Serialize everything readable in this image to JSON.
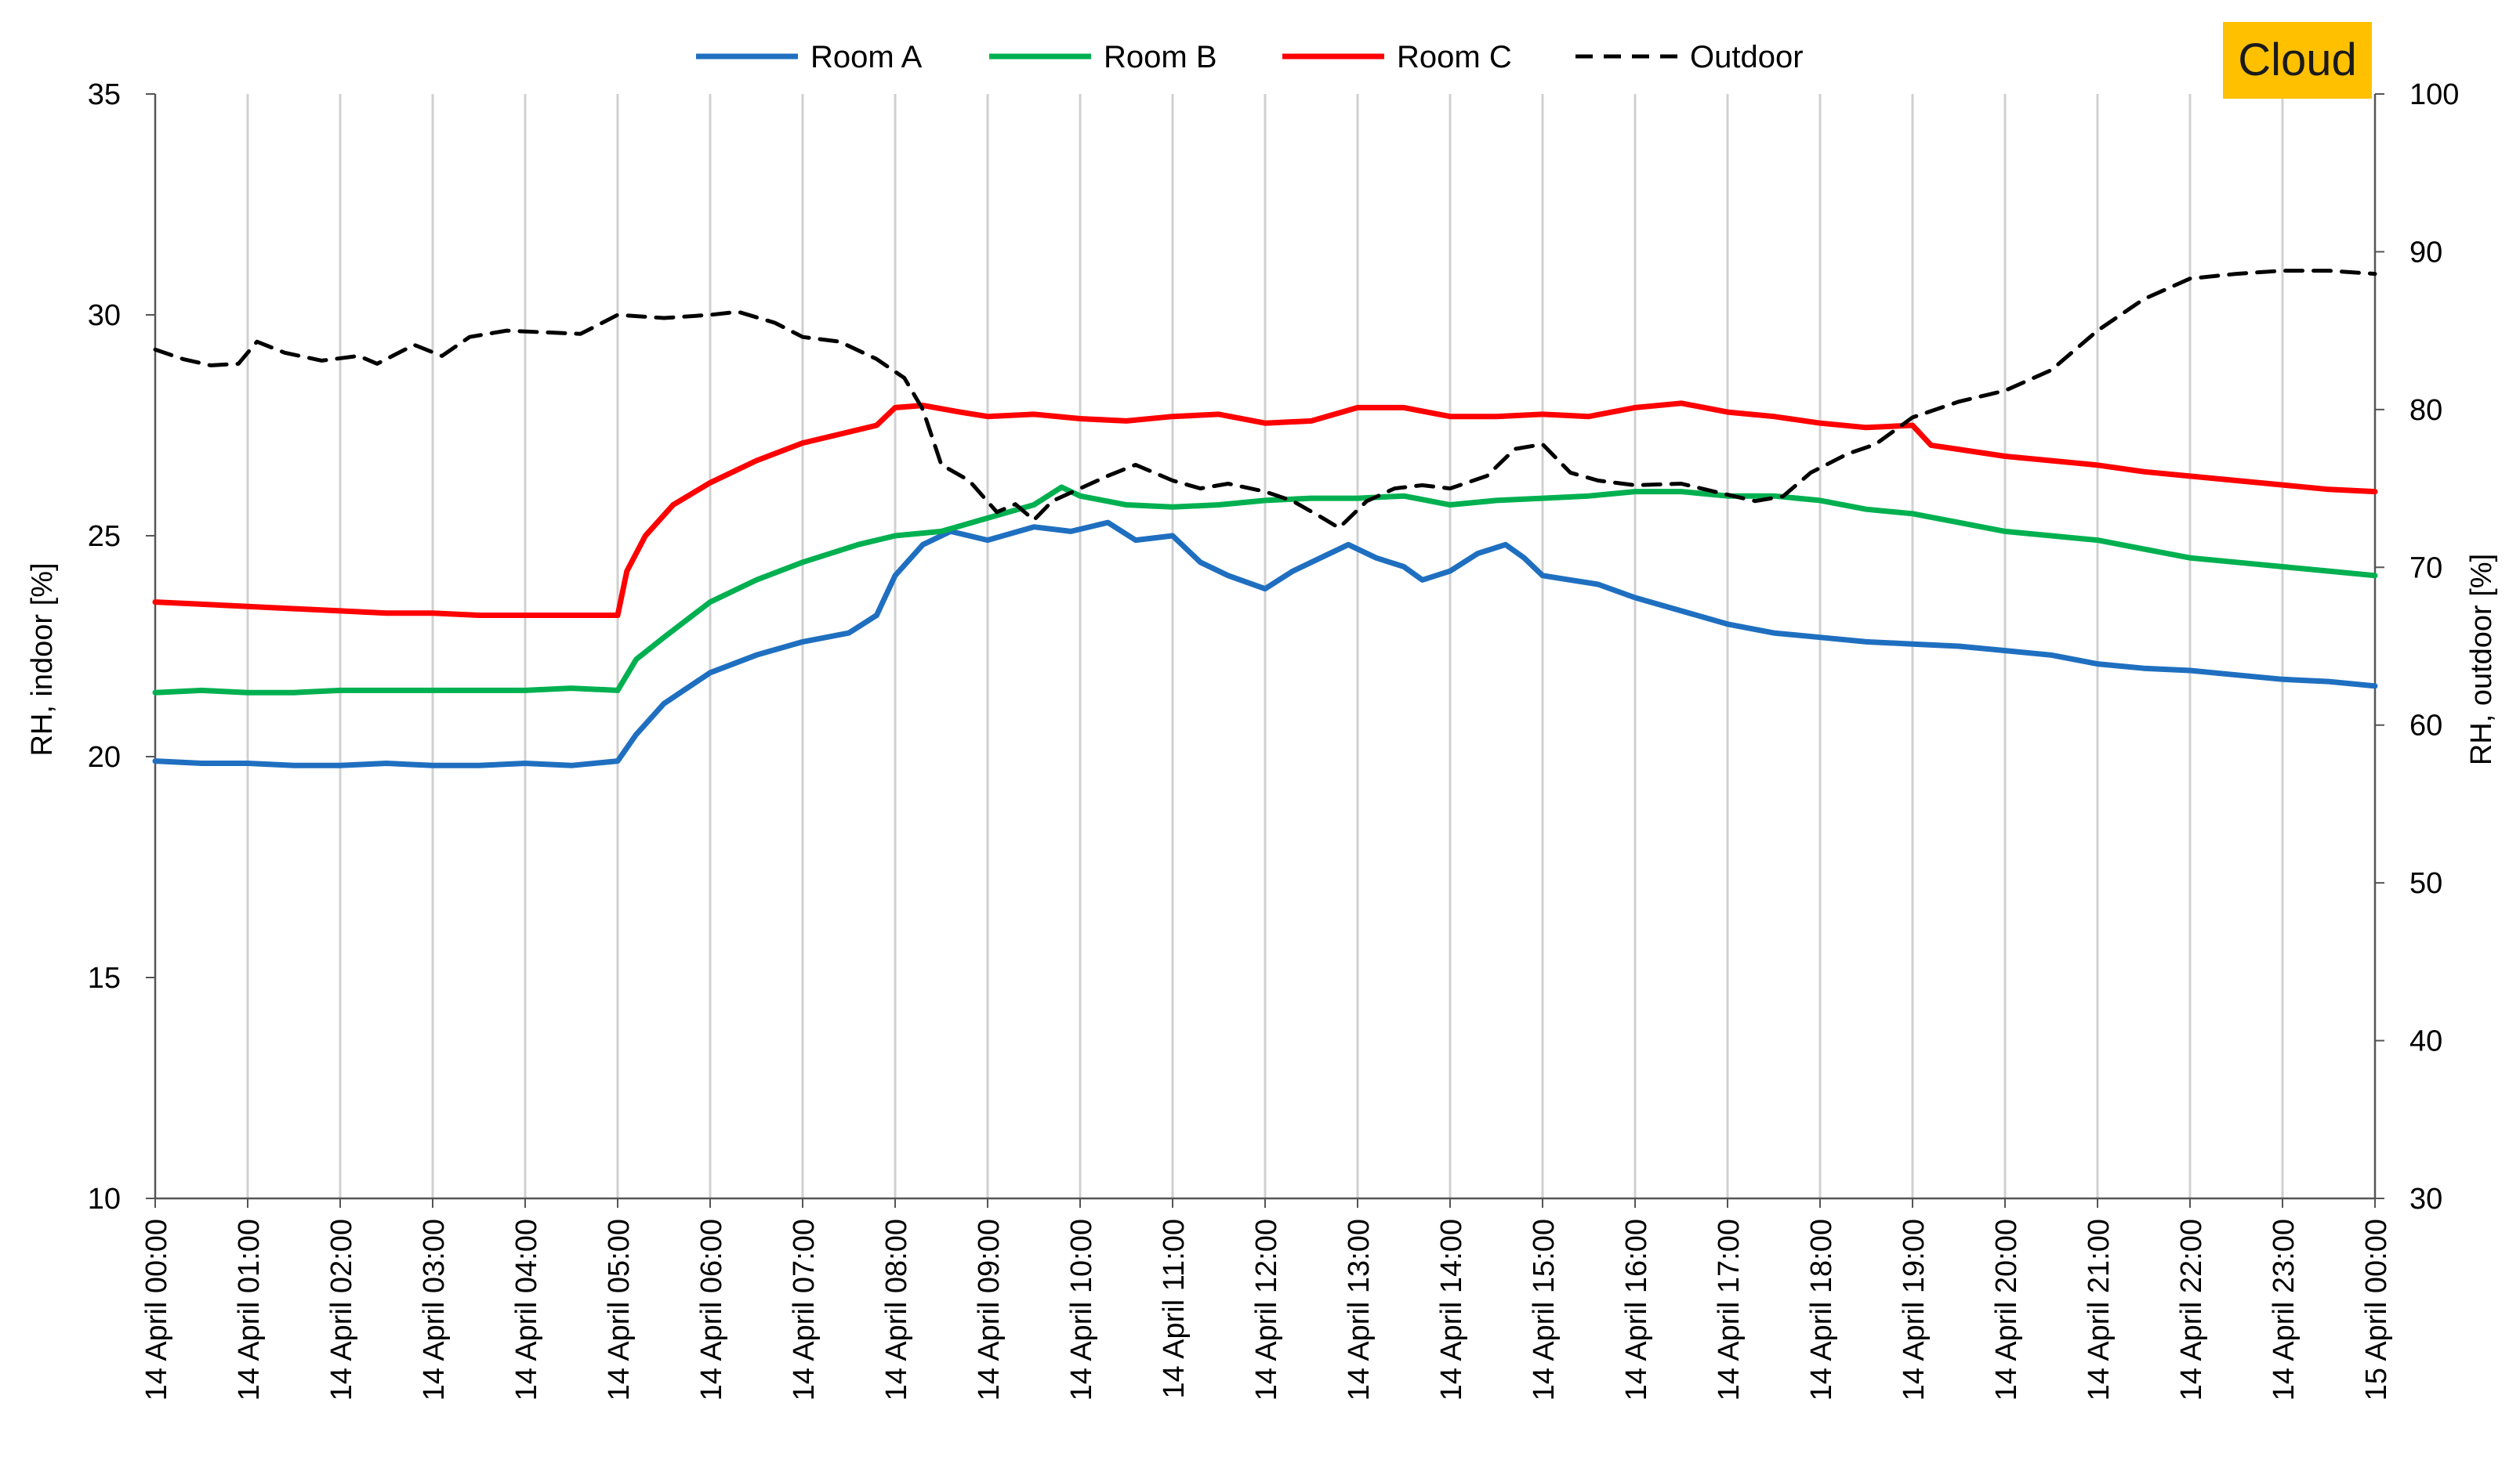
{
  "chart_data": {
    "type": "line",
    "title": "",
    "ylabel": "RH, indoor [%]",
    "ylabel_right": "RH, outdoor [%]",
    "ylim": [
      10,
      35
    ],
    "ylim_right": [
      30,
      100
    ],
    "yticks": [
      10,
      15,
      20,
      25,
      30,
      35
    ],
    "yticks_right": [
      30,
      40,
      50,
      60,
      70,
      80,
      90,
      100
    ],
    "xlim": [
      0,
      24
    ],
    "xtick_labels": [
      "14 April 00:00",
      "14 April 01:00",
      "14 April 02:00",
      "14 April 03:00",
      "14 April 04:00",
      "14 April 05:00",
      "14 April 06:00",
      "14 April 07:00",
      "14 April 08:00",
      "14 April 09:00",
      "14 April 10:00",
      "14 April 11:00",
      "14 April 12:00",
      "14 April 13:00",
      "14 April 14:00",
      "14 April 15:00",
      "14 April 16:00",
      "14 April 17:00",
      "14 April 18:00",
      "14 April 19:00",
      "14 April 20:00",
      "14 April 21:00",
      "14 April 22:00",
      "14 April 23:00",
      "15 April 00:00"
    ],
    "grid": "vertical",
    "legend_position": "top-center",
    "badge": "Cloud",
    "series": [
      {
        "name": "Room A",
        "axis": "left",
        "color": "#1f6fc0",
        "dash": false,
        "x": [
          0,
          0.5,
          1,
          1.5,
          2,
          2.5,
          3,
          3.5,
          4,
          4.5,
          5,
          5.2,
          5.5,
          6,
          6.5,
          7,
          7.5,
          7.8,
          8,
          8.3,
          8.6,
          9,
          9.5,
          9.9,
          10.3,
          10.6,
          11,
          11.3,
          11.6,
          12,
          12.3,
          12.6,
          12.9,
          13.2,
          13.5,
          13.7,
          14,
          14.3,
          14.6,
          14.8,
          15,
          15.3,
          15.6,
          16,
          16.5,
          17,
          17.5,
          18,
          18.5,
          19,
          19.5,
          20,
          20.5,
          21,
          21.5,
          22,
          22.5,
          23,
          23.5,
          24
        ],
        "y": [
          19.9,
          19.85,
          19.85,
          19.8,
          19.8,
          19.85,
          19.8,
          19.8,
          19.85,
          19.8,
          19.9,
          20.5,
          21.2,
          21.9,
          22.3,
          22.6,
          22.8,
          23.2,
          24.1,
          24.8,
          25.1,
          24.9,
          25.2,
          25.1,
          25.3,
          24.9,
          25.0,
          24.4,
          24.1,
          23.8,
          24.2,
          24.5,
          24.8,
          24.5,
          24.3,
          24.0,
          24.2,
          24.6,
          24.8,
          24.5,
          24.1,
          24.0,
          23.9,
          23.6,
          23.3,
          23.0,
          22.8,
          22.7,
          22.6,
          22.55,
          22.5,
          22.4,
          22.3,
          22.1,
          22.0,
          21.95,
          21.85,
          21.75,
          21.7,
          21.6
        ]
      },
      {
        "name": "Room B",
        "axis": "left",
        "color": "#00b050",
        "dash": false,
        "x": [
          0,
          0.5,
          1,
          1.5,
          2,
          2.5,
          3,
          3.5,
          4,
          4.5,
          5,
          5.2,
          5.5,
          6,
          6.5,
          7,
          7.3,
          7.6,
          8,
          8.5,
          9,
          9.5,
          9.8,
          10,
          10.5,
          11,
          11.5,
          12,
          12.5,
          13,
          13.5,
          14,
          14.5,
          15,
          15.5,
          16,
          16.5,
          17,
          17.5,
          18,
          18.5,
          19,
          19.5,
          20,
          20.5,
          21,
          21.5,
          22,
          22.5,
          23,
          23.5,
          24
        ],
        "y": [
          21.45,
          21.5,
          21.45,
          21.45,
          21.5,
          21.5,
          21.5,
          21.5,
          21.5,
          21.55,
          21.5,
          22.2,
          22.7,
          23.5,
          24.0,
          24.4,
          24.6,
          24.8,
          25.0,
          25.1,
          25.4,
          25.7,
          26.1,
          25.9,
          25.7,
          25.65,
          25.7,
          25.8,
          25.85,
          25.85,
          25.9,
          25.7,
          25.8,
          25.85,
          25.9,
          26.0,
          26.0,
          25.9,
          25.9,
          25.8,
          25.6,
          25.5,
          25.3,
          25.1,
          25.0,
          24.9,
          24.7,
          24.5,
          24.4,
          24.3,
          24.2,
          24.1
        ]
      },
      {
        "name": "Room C",
        "axis": "left",
        "color": "#ff0000",
        "dash": false,
        "x": [
          0,
          0.5,
          1,
          1.5,
          2,
          2.5,
          3,
          3.5,
          4,
          4.5,
          5,
          5.1,
          5.3,
          5.6,
          6,
          6.5,
          7,
          7.5,
          7.8,
          8,
          8.3,
          8.7,
          9,
          9.5,
          10,
          10.5,
          11,
          11.5,
          12,
          12.5,
          13,
          13.5,
          14,
          14.5,
          15,
          15.5,
          16,
          16.5,
          17,
          17.5,
          18,
          18.5,
          19,
          19.2,
          20,
          20.5,
          21,
          21.5,
          22,
          22.5,
          23,
          23.5,
          24
        ],
        "y": [
          23.5,
          23.45,
          23.4,
          23.35,
          23.3,
          23.25,
          23.25,
          23.2,
          23.2,
          23.2,
          23.2,
          24.2,
          25.0,
          25.7,
          26.2,
          26.7,
          27.1,
          27.35,
          27.5,
          27.9,
          27.95,
          27.8,
          27.7,
          27.75,
          27.65,
          27.6,
          27.7,
          27.75,
          27.55,
          27.6,
          27.9,
          27.9,
          27.7,
          27.7,
          27.75,
          27.7,
          27.9,
          28.0,
          27.8,
          27.7,
          27.55,
          27.45,
          27.5,
          27.05,
          26.8,
          26.7,
          26.6,
          26.45,
          26.35,
          26.25,
          26.15,
          26.05,
          26.0
        ]
      },
      {
        "name": "Outdoor",
        "axis": "right",
        "color": "#000000",
        "dash": true,
        "x": [
          0,
          0.3,
          0.6,
          0.9,
          1.1,
          1.4,
          1.8,
          2.2,
          2.4,
          2.8,
          3.1,
          3.4,
          3.8,
          4.2,
          4.6,
          5,
          5.5,
          6,
          6.3,
          6.7,
          7,
          7.4,
          7.8,
          8.1,
          8.3,
          8.5,
          8.8,
          9.1,
          9.3,
          9.5,
          9.7,
          10,
          10.3,
          10.6,
          11,
          11.3,
          11.6,
          12,
          12.3,
          12.6,
          12.8,
          13.1,
          13.4,
          13.7,
          14,
          14.4,
          14.7,
          15,
          15.3,
          15.6,
          16,
          16.5,
          17,
          17.3,
          17.6,
          17.9,
          18.3,
          18.6,
          19,
          19.5,
          20,
          20.5,
          21,
          21.5,
          22,
          22.5,
          23,
          23.5,
          24
        ],
        "y": [
          83.8,
          83.2,
          82.8,
          82.9,
          84.3,
          83.6,
          83.1,
          83.4,
          82.9,
          84.1,
          83.4,
          84.6,
          85.0,
          84.9,
          84.8,
          86.0,
          85.8,
          86.0,
          86.2,
          85.5,
          84.6,
          84.3,
          83.2,
          82.0,
          80.0,
          76.5,
          75.5,
          73.5,
          74.0,
          73.0,
          74.2,
          75.0,
          75.8,
          76.5,
          75.5,
          75.0,
          75.3,
          74.8,
          74.2,
          73.2,
          72.5,
          74.2,
          75.0,
          75.2,
          75.0,
          75.8,
          77.5,
          77.8,
          76.0,
          75.5,
          75.2,
          75.3,
          74.6,
          74.2,
          74.5,
          76.0,
          77.2,
          77.8,
          79.5,
          80.5,
          81.2,
          82.5,
          85.0,
          87.0,
          88.3,
          88.6,
          88.8,
          88.8,
          88.6
        ]
      }
    ]
  }
}
